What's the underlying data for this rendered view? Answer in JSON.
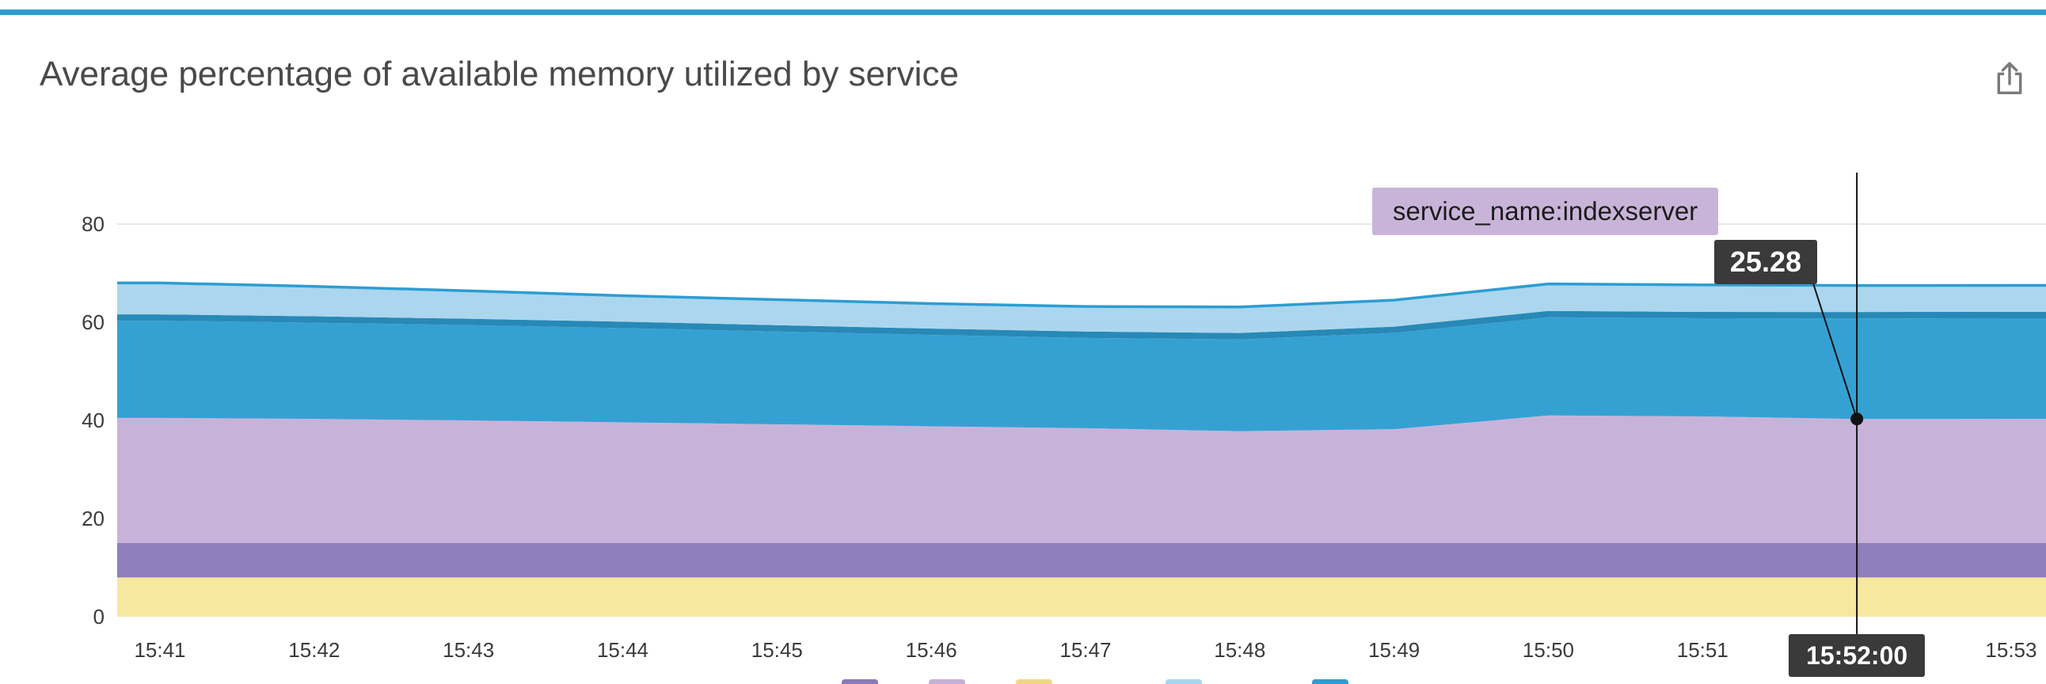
{
  "header": {
    "title": "Average percentage of available memory utilized by service"
  },
  "colors": {
    "accent": "#2d9dd1",
    "tooltip_bg": "#c9b4d9",
    "badge_bg": "#3a3a3a",
    "grid": "#e7e7e7",
    "tick_text": "#3b3b3b",
    "crosshair": "#111111"
  },
  "chart_data": {
    "type": "area",
    "stacked": true,
    "title": "Average percentage of available memory utilized by service",
    "xlabel": "",
    "ylabel": "",
    "ylim": [
      0,
      88
    ],
    "yticks": [
      0,
      20,
      40,
      60,
      80
    ],
    "grid": true,
    "legend_position": "bottom-cropped",
    "top_line_color": "#2d9dd1",
    "categories": [
      "15:41",
      "15:42",
      "15:43",
      "15:44",
      "15:45",
      "15:46",
      "15:47",
      "15:48",
      "15:49",
      "15:50",
      "15:51",
      "15:52",
      "15:53"
    ],
    "series": [
      {
        "name": "",
        "color": "#f7e79b",
        "values": [
          8,
          8,
          8,
          8,
          8,
          8,
          8,
          8,
          8,
          8,
          8,
          8,
          8
        ]
      },
      {
        "name": "",
        "color": "#8a7ab8",
        "values": [
          7,
          7,
          7,
          7,
          7,
          7,
          7,
          7,
          7,
          7,
          7,
          7,
          7
        ]
      },
      {
        "name": "indexserver",
        "color": "#c5b0d9",
        "values": [
          25.5,
          25.3,
          25.0,
          24.6,
          24.2,
          23.8,
          23.4,
          22.8,
          23.2,
          26.0,
          25.8,
          25.28,
          25.3
        ]
      },
      {
        "name": "",
        "color": "#2d9dd1",
        "values": [
          19.8,
          19.6,
          19.4,
          19.2,
          18.9,
          18.6,
          18.4,
          18.7,
          19.6,
          20.0,
          20.0,
          20.5,
          20.5
        ]
      },
      {
        "name": "",
        "color": "#1f84b4",
        "values": [
          1.3,
          1.3,
          1.3,
          1.3,
          1.3,
          1.3,
          1.3,
          1.3,
          1.3,
          1.3,
          1.3,
          1.3,
          1.3
        ]
      },
      {
        "name": "",
        "color": "#a8d4ed",
        "values": [
          6.4,
          6.1,
          5.7,
          5.3,
          5.2,
          5.1,
          5.1,
          5.3,
          5.4,
          5.5,
          5.5,
          5.4,
          5.4
        ]
      }
    ]
  },
  "tooltip": {
    "series_label": "service_name:indexserver",
    "value": "25.28",
    "time_label": "15:52:00",
    "hover_category": "15:52",
    "dot_total": 40.28
  },
  "legend_swatches": [
    "#8a7ab8",
    "#c5b0d9",
    "#f0d787",
    "#a8d4ed",
    "#2d9dd1"
  ]
}
